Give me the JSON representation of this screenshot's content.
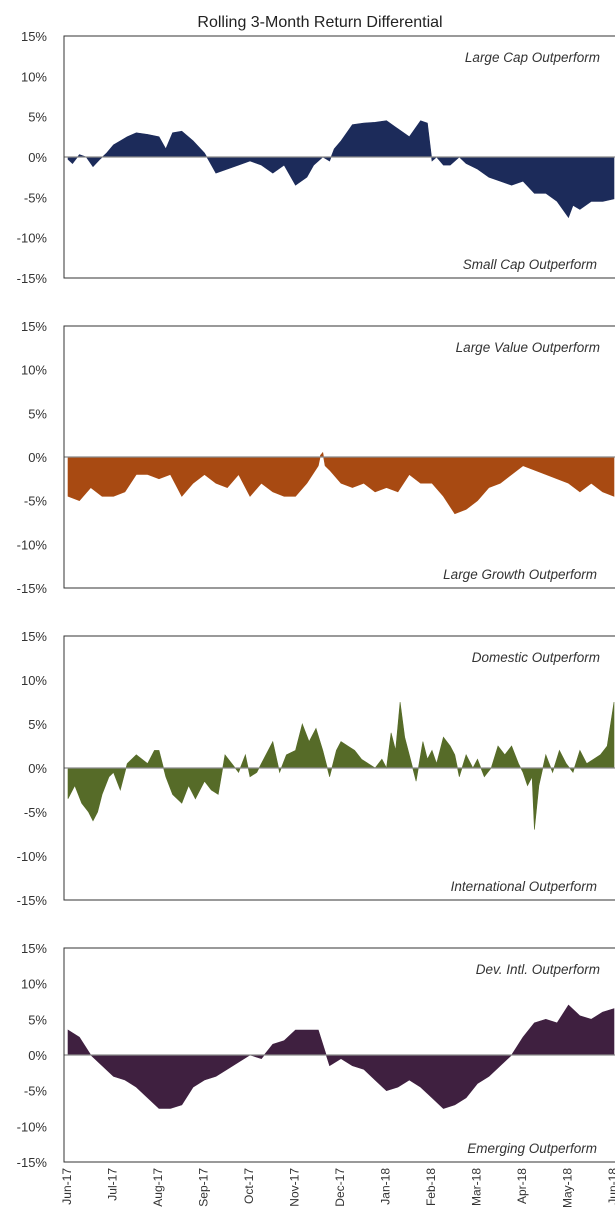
{
  "chart_data": {
    "type": "area",
    "title": "Rolling 3-Month Return Differential",
    "x_categories": [
      "Jun-17",
      "Jul-17",
      "Aug-17",
      "Sep-17",
      "Oct-17",
      "Nov-17",
      "Dec-17",
      "Jan-18",
      "Feb-18",
      "Mar-18",
      "Apr-18",
      "May-18",
      "Jun-18"
    ],
    "y_ticks": [
      "15%",
      "10%",
      "5%",
      "0%",
      "-5%",
      "-10%",
      "-15%"
    ],
    "ylim": [
      -15,
      15
    ],
    "grid": false,
    "panels": [
      {
        "color": "#1c2b5a",
        "top_annotation": "Large Cap Outperform",
        "bottom_annotation": "Small Cap Outperform",
        "x": [
          0,
          0.1,
          0.25,
          0.4,
          0.55,
          0.7,
          0.85,
          1.0,
          1.15,
          1.3,
          1.5,
          1.75,
          2.0,
          2.15,
          2.3,
          2.5,
          2.75,
          3.0,
          3.1,
          3.25,
          3.5,
          3.75,
          4.0,
          4.25,
          4.5,
          4.75,
          5.0,
          5.25,
          5.4,
          5.6,
          5.75,
          5.85,
          6.0,
          6.25,
          6.5,
          6.75,
          7.0,
          7.25,
          7.5,
          7.75,
          7.9,
          8.0,
          8.1,
          8.25,
          8.4,
          8.5,
          8.6,
          8.75,
          9.0,
          9.25,
          9.5,
          9.75,
          10.0,
          10.25,
          10.5,
          10.75,
          11.0,
          11.1,
          11.25,
          11.5,
          11.75,
          12.0
        ],
        "values": [
          -0.3,
          -0.8,
          0.3,
          0,
          -1.2,
          -0.3,
          0.5,
          1.5,
          2,
          2.5,
          3,
          2.8,
          2.5,
          1,
          3,
          3.2,
          2,
          0.5,
          -0.5,
          -2,
          -1.5,
          -1,
          -0.5,
          -1,
          -2,
          -1,
          -3.5,
          -2.5,
          -1,
          0,
          -0.5,
          1,
          2,
          4,
          4.2,
          4.3,
          4.5,
          3.5,
          2.5,
          4.5,
          4.2,
          -0.5,
          0,
          -1,
          -1,
          -0.5,
          0,
          -0.8,
          -1.5,
          -2.5,
          -3,
          -3.5,
          -3,
          -4.5,
          -4.5,
          -5.5,
          -7.5,
          -6,
          -6.5,
          -5.5,
          -5.5,
          -5.2
        ]
      },
      {
        "color": "#a84a12",
        "top_annotation": "Large Value Outperform",
        "bottom_annotation": "Large Growth Outperform",
        "x": [
          0,
          0.25,
          0.5,
          0.75,
          1.0,
          1.25,
          1.5,
          1.75,
          2.0,
          2.25,
          2.5,
          2.75,
          3.0,
          3.25,
          3.5,
          3.75,
          4.0,
          4.25,
          4.5,
          4.75,
          5.0,
          5.25,
          5.5,
          5.55,
          5.6,
          5.65,
          5.75,
          6.0,
          6.25,
          6.5,
          6.75,
          7.0,
          7.25,
          7.5,
          7.75,
          8.0,
          8.25,
          8.5,
          8.75,
          9.0,
          9.25,
          9.5,
          9.75,
          10.0,
          10.25,
          10.5,
          10.75,
          11.0,
          11.25,
          11.5,
          11.75,
          12.0
        ],
        "values": [
          -4.5,
          -5,
          -3.5,
          -4.5,
          -4.5,
          -4,
          -2,
          -2,
          -2.5,
          -2,
          -4.5,
          -3,
          -2,
          -3,
          -3.5,
          -2,
          -4.5,
          -3,
          -4,
          -4.5,
          -4.5,
          -3,
          -1,
          0.2,
          0.5,
          -1,
          -1.5,
          -3,
          -3.5,
          -3,
          -4,
          -3.5,
          -4,
          -2,
          -3,
          -3,
          -4.5,
          -6.5,
          -6,
          -5,
          -3.5,
          -3,
          -2,
          -1,
          -1.5,
          -2,
          -2.5,
          -3,
          -4,
          -3,
          -4,
          -4.5
        ]
      },
      {
        "color": "#566b28",
        "top_annotation": "Domestic Outperform",
        "bottom_annotation": "International Outperform",
        "x": [
          0,
          0.15,
          0.3,
          0.45,
          0.55,
          0.65,
          0.75,
          0.9,
          1.0,
          1.15,
          1.3,
          1.5,
          1.75,
          1.9,
          2.0,
          2.15,
          2.3,
          2.5,
          2.65,
          2.8,
          3.0,
          3.15,
          3.3,
          3.45,
          3.6,
          3.75,
          3.9,
          4.0,
          4.15,
          4.3,
          4.5,
          4.65,
          4.8,
          5.0,
          5.15,
          5.3,
          5.45,
          5.6,
          5.75,
          5.9,
          6.0,
          6.15,
          6.3,
          6.45,
          6.6,
          6.75,
          6.9,
          7.0,
          7.1,
          7.2,
          7.3,
          7.4,
          7.5,
          7.65,
          7.8,
          7.9,
          8.0,
          8.1,
          8.25,
          8.4,
          8.5,
          8.6,
          8.75,
          8.9,
          9.0,
          9.15,
          9.3,
          9.45,
          9.6,
          9.75,
          9.9,
          10.0,
          10.1,
          10.2,
          10.25,
          10.35,
          10.5,
          10.65,
          10.8,
          10.95,
          11.1,
          11.25,
          11.4,
          11.55,
          11.7,
          11.85,
          12.0
        ],
        "values": [
          -3.5,
          -2,
          -4,
          -5,
          -6,
          -5,
          -3,
          -1,
          -0.5,
          -2.5,
          0.5,
          1.5,
          0.5,
          2,
          2,
          -1,
          -3,
          -4,
          -2,
          -3.5,
          -1.5,
          -2.5,
          -3,
          1.5,
          0.5,
          -0.5,
          1.5,
          -1,
          -0.5,
          1,
          3,
          -0.5,
          1.5,
          2,
          5,
          3,
          4.5,
          2,
          -1,
          2,
          3,
          2.5,
          2,
          1,
          0.5,
          0,
          1,
          0,
          4,
          2,
          7.5,
          3.5,
          1.5,
          -1.5,
          3,
          1,
          2,
          0.5,
          3.5,
          2.5,
          1.5,
          -1,
          1.5,
          0,
          1,
          -1,
          0,
          2.5,
          1.5,
          2.5,
          0.5,
          -0.5,
          -2,
          -1,
          -7,
          -2,
          1.5,
          -0.5,
          2,
          0.5,
          -0.5,
          2,
          0.5,
          1,
          1.5,
          2.5,
          7.5
        ]
      },
      {
        "color": "#3f2040",
        "top_annotation": "Dev. Intl. Outperform",
        "bottom_annotation": "Emerging Outperform",
        "x": [
          0,
          0.25,
          0.5,
          0.75,
          1.0,
          1.25,
          1.5,
          1.75,
          2.0,
          2.25,
          2.5,
          2.75,
          3.0,
          3.25,
          3.5,
          3.75,
          4.0,
          4.25,
          4.5,
          4.75,
          5.0,
          5.25,
          5.5,
          5.75,
          6.0,
          6.25,
          6.5,
          6.75,
          7.0,
          7.25,
          7.5,
          7.75,
          8.0,
          8.25,
          8.5,
          8.75,
          9.0,
          9.25,
          9.5,
          9.75,
          10.0,
          10.25,
          10.5,
          10.75,
          11.0,
          11.25,
          11.5,
          11.75,
          12.0
        ],
        "values": [
          3.5,
          2.5,
          0,
          -1.5,
          -3,
          -3.5,
          -4.5,
          -6,
          -7.5,
          -7.5,
          -7,
          -4.5,
          -3.5,
          -3,
          -2,
          -1,
          0,
          -0.5,
          1.5,
          2,
          3.5,
          3.5,
          3.5,
          -1.5,
          -0.5,
          -1.5,
          -2,
          -3.5,
          -5,
          -4.5,
          -3.5,
          -4.5,
          -6,
          -7.5,
          -7,
          -6,
          -4,
          -3,
          -1.5,
          0,
          2.5,
          4.5,
          5,
          4.5,
          7,
          5.5,
          5,
          6,
          6.5
        ]
      }
    ]
  }
}
